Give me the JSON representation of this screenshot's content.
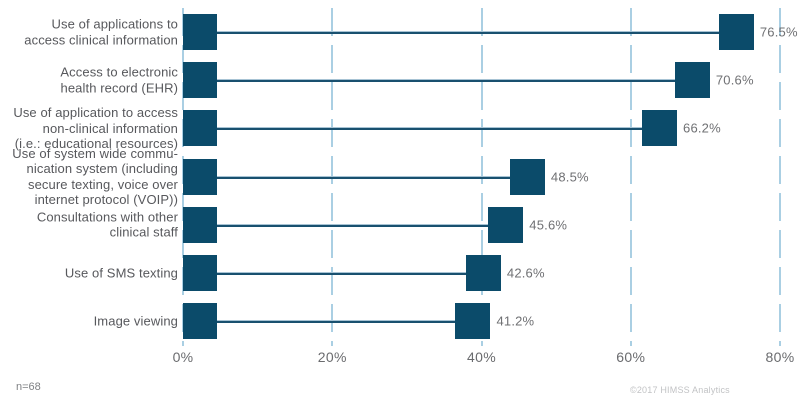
{
  "chart_data": {
    "type": "bar",
    "subtype": "dumbbell-horizontal",
    "categories": [
      "Use of applications to\naccess clinical information",
      "Access to electronic\nhealth record (EHR)",
      "Use of application to access\nnon-clinical information\n(i.e.: educational resources)",
      "Use of system wide commu-\nnication system (including\nsecure texting, voice over\ninternet protocol (VOIP))",
      "Consultations with other\nclinical staff",
      "Use of SMS texting",
      "Image viewing"
    ],
    "values": [
      76.5,
      70.6,
      66.2,
      48.5,
      45.6,
      42.6,
      41.2
    ],
    "value_labels": [
      "76.5%",
      "70.6%",
      "66.2%",
      "48.5%",
      "45.6%",
      "42.6%",
      "41.2%"
    ],
    "xlim": [
      0,
      80
    ],
    "xtick_values": [
      0,
      20,
      40,
      60,
      80
    ],
    "xtick_labels": [
      "0%",
      "20%",
      "40%",
      "60%",
      "80%"
    ],
    "grid": "dashed-vertical",
    "legend": "none",
    "colors": {
      "marker": "#0b4b6a",
      "connector": "#19506f",
      "connector_highlight": "#a7c3d4",
      "gridline": "#aacfe3",
      "category_text": "#57585c",
      "value_text": "#6f7073",
      "tick_text": "#6a6b6e"
    }
  },
  "footnote": "n=68",
  "copyright": "©2017 HIMSS Analytics"
}
